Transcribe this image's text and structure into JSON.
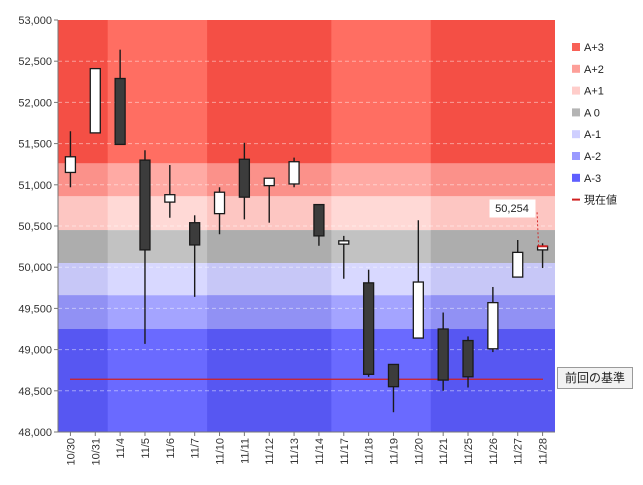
{
  "chart_data": {
    "type": "candlestick",
    "categories": [
      "10/30",
      "10/31",
      "11/4",
      "11/5",
      "11/6",
      "11/7",
      "11/10",
      "11/11",
      "11/12",
      "11/13",
      "11/14",
      "11/17",
      "11/18",
      "11/19",
      "11/20",
      "11/21",
      "11/25",
      "11/26",
      "11/27",
      "11/28"
    ],
    "candles": [
      {
        "open": 51150,
        "high": 51650,
        "low": 50970,
        "close": 51340
      },
      {
        "open": 51630,
        "high": 52410,
        "low": 51630,
        "close": 52410
      },
      {
        "open": 52290,
        "high": 52640,
        "low": 51490,
        "close": 51490
      },
      {
        "open": 51300,
        "high": 51420,
        "low": 49070,
        "close": 50210
      },
      {
        "open": 50790,
        "high": 51240,
        "low": 50600,
        "close": 50880
      },
      {
        "open": 50540,
        "high": 50630,
        "low": 49640,
        "close": 50270
      },
      {
        "open": 50650,
        "high": 50970,
        "low": 50400,
        "close": 50910
      },
      {
        "open": 51310,
        "high": 51510,
        "low": 50580,
        "close": 50850
      },
      {
        "open": 50990,
        "high": 51080,
        "low": 50540,
        "close": 51080
      },
      {
        "open": 51010,
        "high": 51330,
        "low": 50970,
        "close": 51280
      },
      {
        "open": 50760,
        "high": 50760,
        "low": 50260,
        "close": 50380
      },
      {
        "open": 50280,
        "high": 50380,
        "low": 49860,
        "close": 50320
      },
      {
        "open": 49810,
        "high": 49970,
        "low": 48670,
        "close": 48700
      },
      {
        "open": 48820,
        "high": 48820,
        "low": 48240,
        "close": 48550
      },
      {
        "open": 49140,
        "high": 50570,
        "low": 49140,
        "close": 49820
      },
      {
        "open": 49250,
        "high": 49450,
        "low": 48500,
        "close": 48630
      },
      {
        "open": 49110,
        "high": 49160,
        "low": 48540,
        "close": 48670
      },
      {
        "open": 49010,
        "high": 49760,
        "low": 48970,
        "close": 49570
      },
      {
        "open": 49880,
        "high": 50330,
        "low": 49880,
        "close": 50180
      },
      {
        "open": 50210,
        "high": 50290,
        "low": 49990,
        "close": 50254
      }
    ],
    "ylim": [
      48000,
      53000
    ],
    "yticks": [
      48000,
      48500,
      49000,
      49500,
      50000,
      50500,
      51000,
      51500,
      52000,
      52500,
      53000
    ],
    "ytick_labels": [
      "48,000",
      "48,500",
      "49,000",
      "49,500",
      "50,000",
      "50,500",
      "51,000",
      "51,500",
      "52,000",
      "52,500",
      "53,000"
    ],
    "bands": [
      {
        "name": "A+3",
        "from": 51260,
        "to": 53000,
        "color": "#ff6e62",
        "alt_color": "#f44f45"
      },
      {
        "name": "A+2",
        "from": 50860,
        "to": 51260,
        "color": "#ffaaa4",
        "alt_color": "#fb918a"
      },
      {
        "name": "A+1",
        "from": 50450,
        "to": 50860,
        "color": "#ffd9d6",
        "alt_color": "#fdc6c2"
      },
      {
        "name": "A 0",
        "from": 50050,
        "to": 50450,
        "color": "#c2c2c2",
        "alt_color": "#adadad"
      },
      {
        "name": "A-1",
        "from": 49660,
        "to": 50050,
        "color": "#d8d8ff",
        "alt_color": "#c7c7f7"
      },
      {
        "name": "A-2",
        "from": 49250,
        "to": 49660,
        "color": "#a4a4ff",
        "alt_color": "#9191f4"
      },
      {
        "name": "A-3",
        "from": 48000,
        "to": 49250,
        "color": "#6a6aff",
        "alt_color": "#5757f2"
      }
    ],
    "alt_groups": [
      [
        0,
        1
      ],
      [
        6,
        10
      ],
      [
        15,
        19
      ]
    ],
    "reference_line": {
      "value": 48640,
      "color": "#d02020"
    },
    "current_value": 50254,
    "current_value_label": "50,254",
    "legend": [
      {
        "label": "A+3",
        "color": "#f86157"
      },
      {
        "label": "A+2",
        "color": "#fd9f99"
      },
      {
        "label": "A+1",
        "color": "#ffcdca"
      },
      {
        "label": "A 0",
        "color": "#b4b4b4"
      },
      {
        "label": "A-1",
        "color": "#cfcfff"
      },
      {
        "label": "A-2",
        "color": "#9a9aff"
      },
      {
        "label": "A-3",
        "color": "#5f5fff"
      },
      {
        "label": "現在値",
        "color": "#d02020",
        "style": "line"
      }
    ],
    "legend_position": "right",
    "grid": true,
    "bull_color": "#ffffff",
    "bear_color": "#3c3c3c"
  },
  "prev_base_button": {
    "label": "前回の基準"
  }
}
